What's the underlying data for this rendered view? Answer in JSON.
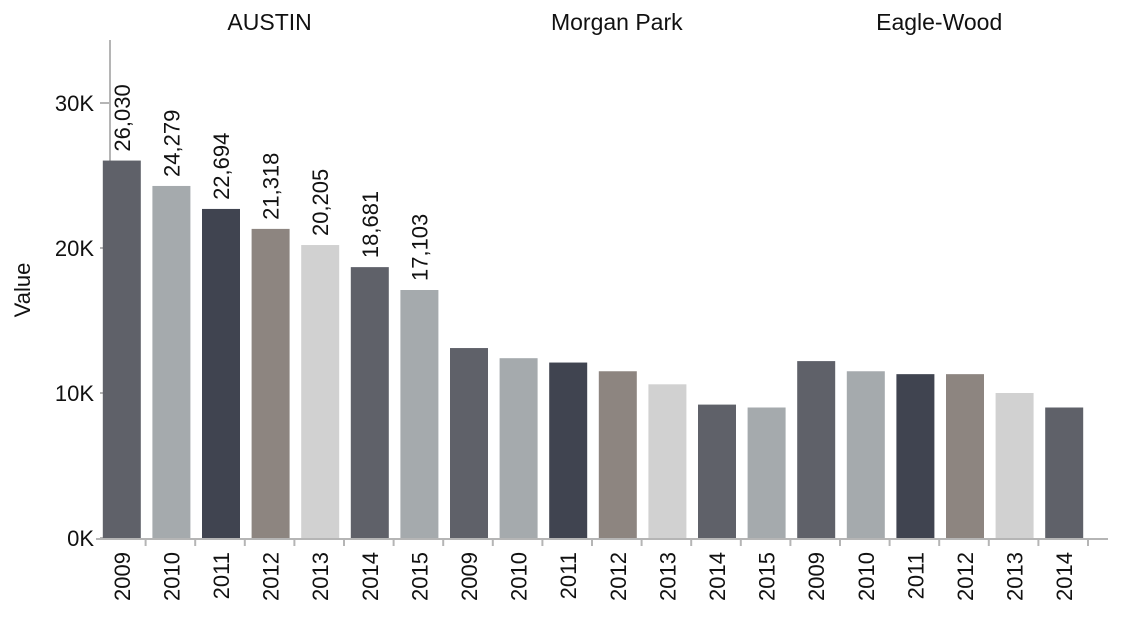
{
  "chart_data": {
    "type": "bar",
    "ylabel": "Value",
    "ylim": [
      0,
      34000
    ],
    "y_ticks": [
      {
        "value": 0,
        "label": "0K"
      },
      {
        "value": 10000,
        "label": "10K"
      },
      {
        "value": 20000,
        "label": "20K"
      },
      {
        "value": 30000,
        "label": "30K"
      }
    ],
    "grid": false,
    "legend": "none",
    "colors_cycle": [
      "#5f6169",
      "#a5aaad",
      "#404450",
      "#8d8580",
      "#d1d1d1"
    ],
    "groups": [
      {
        "name": "AUSTIN",
        "categories": [
          "2009",
          "2010",
          "2011",
          "2012",
          "2013",
          "2014",
          "2015"
        ],
        "values": [
          26030,
          24279,
          22694,
          21318,
          20205,
          18681,
          17103
        ],
        "labels": [
          "26,030",
          "24,279",
          "22,694",
          "21,318",
          "20,205",
          "18,681",
          "17,103"
        ]
      },
      {
        "name": "Morgan Park",
        "categories": [
          "2009",
          "2010",
          "2011",
          "2012",
          "2013",
          "2014",
          "2015"
        ],
        "values": [
          13100,
          12400,
          12100,
          11500,
          10600,
          9200,
          9000
        ],
        "labels": []
      },
      {
        "name": "Eagle-Wood",
        "categories": [
          "2009",
          "2010",
          "2011",
          "2012",
          "2013",
          "2014"
        ],
        "values": [
          12200,
          11500,
          11300,
          11300,
          10000,
          9000
        ],
        "labels": []
      }
    ]
  }
}
